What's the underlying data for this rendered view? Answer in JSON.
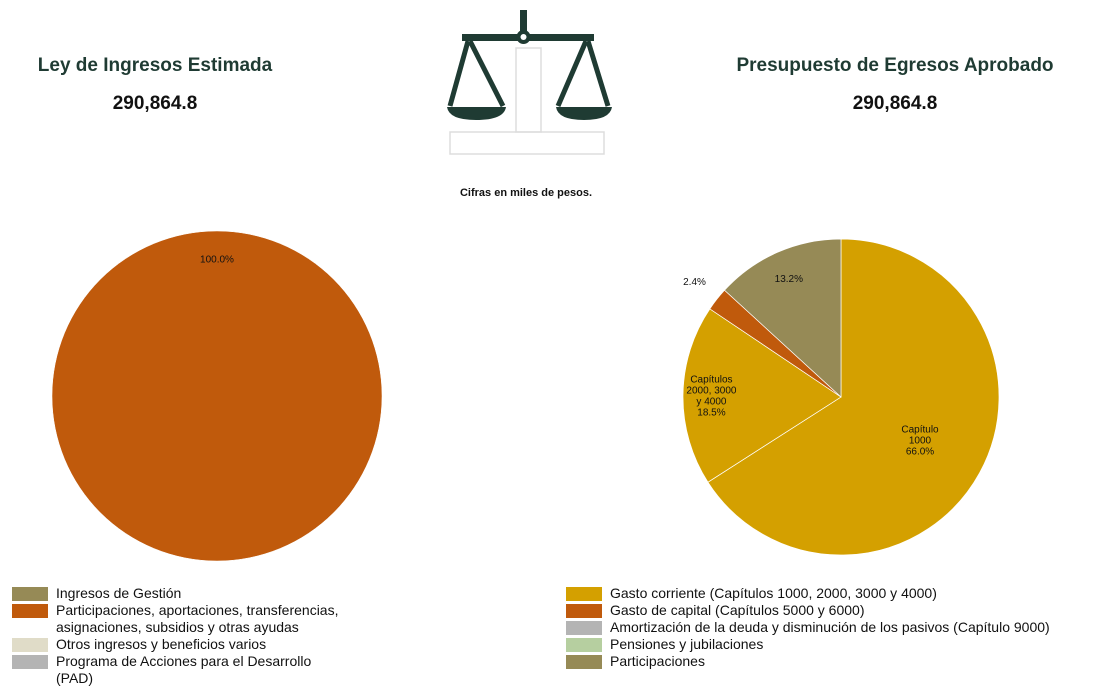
{
  "header": {
    "left_title": "Ley de Ingresos Estimada",
    "left_amount": "290,864.8",
    "right_title": "Presupuesto de Egresos Aprobado",
    "right_amount": "290,864.8",
    "note": "Cifras en miles de pesos."
  },
  "chart_data": [
    {
      "type": "pie",
      "slices": [
        {
          "value": 100.0,
          "value_label": "100.0%",
          "color": "#c05a0c"
        }
      ],
      "legend": [
        {
          "name": "Ingresos de Gestión",
          "color": "#968a56"
        },
        {
          "name": "Participaciones, aportaciones, transferencias, asignaciones, subsidios y otras ayudas",
          "color": "#c05a0c"
        },
        {
          "name": "Otros ingresos y beneficios varios",
          "color": "#e0dcc8"
        },
        {
          "name": "Programa de Acciones para el Desarrollo (PAD)",
          "color": "#b4b4b4"
        }
      ]
    },
    {
      "type": "pie",
      "slices": [
        {
          "label": [
            "Capítulo",
            "1000"
          ],
          "value": 66.0,
          "value_label": "66.0%",
          "color": "#d4a000"
        },
        {
          "label": [
            "Capítulos",
            "2000, 3000",
            "y 4000"
          ],
          "value": 18.5,
          "value_label": "18.5%",
          "color": "#d4a000"
        },
        {
          "value": 2.4,
          "value_label": "2.4%",
          "color": "#c05a0c"
        },
        {
          "value": 13.2,
          "value_label": "13.2%",
          "color": "#968a56"
        }
      ],
      "legend": [
        {
          "name": "Gasto corriente (Capítulos 1000, 2000, 3000 y 4000)",
          "color": "#d4a000"
        },
        {
          "name": "Gasto de capital (Capítulos 5000 y 6000)",
          "color": "#c05a0c"
        },
        {
          "name": "Amortización de la deuda y disminución de los pasivos (Capítulo 9000)",
          "color": "#b4b4b4"
        },
        {
          "name": "Pensiones y jubilaciones",
          "color": "#b6cfa0"
        },
        {
          "name": "Participaciones",
          "color": "#968a56"
        }
      ]
    }
  ]
}
